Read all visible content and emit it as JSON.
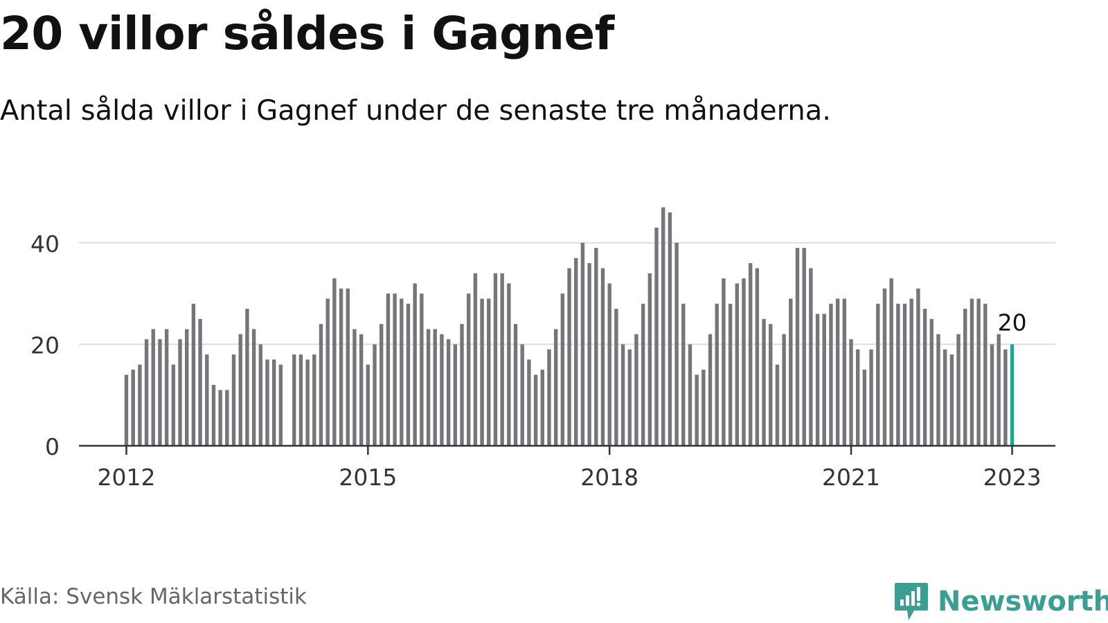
{
  "header": {
    "title": "20 villor såldes i Gagnef",
    "subtitle": "Antal sålda villor i Gagnef under de senaste tre månaderna."
  },
  "footer": {
    "source": "Källa: Svensk Mäklarstatistik",
    "brand": "Newsworthy"
  },
  "colors": {
    "bar": "#75757a",
    "highlight": "#1aa79a",
    "grid": "#dcdcdc",
    "axis": "#333333",
    "brand": "#3a9e93"
  },
  "chart_data": {
    "type": "bar",
    "x_start": "2012-01",
    "y_ticks": [
      0,
      20,
      40
    ],
    "x_ticks": [
      "2012",
      "2015",
      "2018",
      "2021",
      "2023"
    ],
    "ylim": [
      0,
      50
    ],
    "grid": true,
    "highlight_label": "20",
    "values": [
      14,
      15,
      16,
      21,
      23,
      21,
      23,
      16,
      21,
      23,
      28,
      25,
      18,
      12,
      11,
      11,
      18,
      22,
      27,
      23,
      20,
      17,
      17,
      16,
      null,
      18,
      18,
      17,
      18,
      24,
      29,
      33,
      31,
      31,
      23,
      22,
      16,
      20,
      24,
      30,
      30,
      29,
      28,
      32,
      30,
      23,
      23,
      22,
      21,
      20,
      24,
      30,
      34,
      29,
      29,
      34,
      34,
      32,
      24,
      20,
      17,
      14,
      15,
      19,
      23,
      30,
      35,
      37,
      40,
      36,
      39,
      35,
      32,
      27,
      20,
      19,
      22,
      28,
      34,
      43,
      47,
      46,
      40,
      28,
      20,
      14,
      15,
      22,
      28,
      33,
      28,
      32,
      33,
      36,
      35,
      25,
      24,
      16,
      22,
      29,
      39,
      39,
      35,
      26,
      26,
      28,
      29,
      29,
      21,
      19,
      15,
      19,
      28,
      31,
      33,
      28,
      28,
      29,
      31,
      27,
      25,
      22,
      19,
      18,
      22,
      27,
      29,
      29,
      28,
      20,
      22,
      19,
      20
    ]
  }
}
